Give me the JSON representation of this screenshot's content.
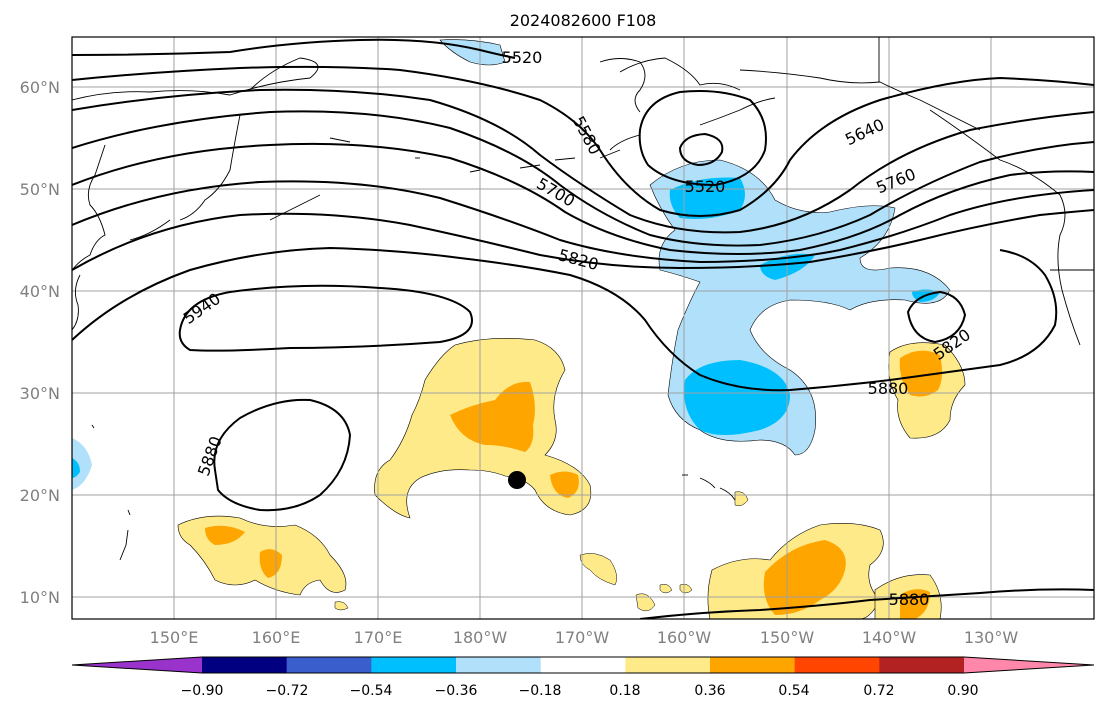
{
  "title": "2024082600 F108",
  "map": {
    "lat_ticks": [
      "60°N",
      "50°N",
      "40°N",
      "30°N",
      "20°N",
      "10°N"
    ],
    "lon_ticks": [
      "150°E",
      "160°E",
      "170°E",
      "180°W",
      "170°W",
      "160°W",
      "150°W",
      "140°W",
      "130°W"
    ],
    "height_contour_labels": [
      "5520",
      "5580",
      "5640",
      "5700",
      "5520",
      "5760",
      "5820",
      "5940",
      "5820",
      "5880",
      "5880",
      "5880"
    ],
    "marker": "storm-center-dot"
  },
  "colorbar": {
    "labels": [
      "−0.90",
      "−0.72",
      "−0.54",
      "−0.36",
      "−0.18",
      "0.18",
      "0.36",
      "0.54",
      "0.72",
      "0.90"
    ],
    "colors": [
      "#9933cc",
      "#000080",
      "#3a5fcd",
      "#00bfff",
      "#b0e0fa",
      "#ffffff",
      "#ffea8a",
      "#ffa500",
      "#ff4500",
      "#b22222",
      "#ff88aa"
    ]
  }
}
